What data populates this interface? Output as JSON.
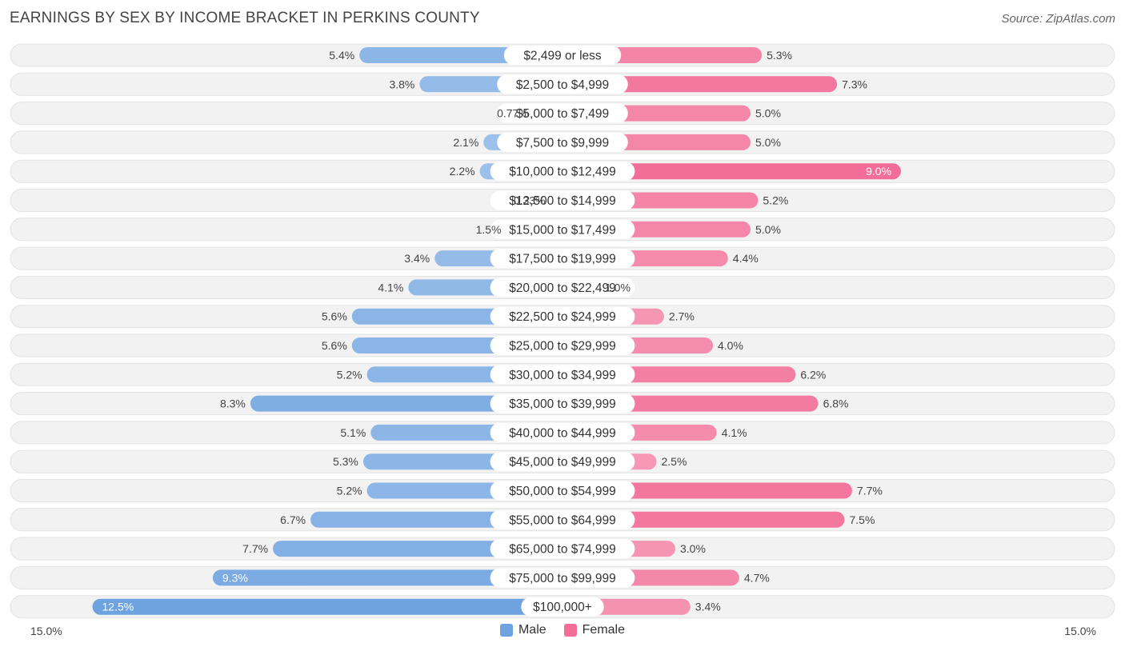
{
  "title": "EARNINGS BY SEX BY INCOME BRACKET IN PERKINS COUNTY",
  "source": "Source: ZipAtlas.com",
  "colors": {
    "male": "#6fa3df",
    "male_light": "#a9c9ee",
    "female": "#f26e98",
    "female_light": "#f8afc7",
    "row_bg": "#f2f2f2"
  },
  "chart_data": {
    "type": "bar",
    "orientation": "horizontal-diverging",
    "title": "EARNINGS BY SEX BY INCOME BRACKET IN PERKINS COUNTY",
    "categories": [
      "$2,499 or less",
      "$2,500 to $4,999",
      "$5,000 to $7,499",
      "$7,500 to $9,999",
      "$10,000 to $12,499",
      "$12,500 to $14,999",
      "$15,000 to $17,499",
      "$17,500 to $19,999",
      "$20,000 to $22,499",
      "$22,500 to $24,999",
      "$25,000 to $29,999",
      "$30,000 to $34,999",
      "$35,000 to $39,999",
      "$40,000 to $44,999",
      "$45,000 to $49,999",
      "$50,000 to $54,999",
      "$55,000 to $64,999",
      "$65,000 to $74,999",
      "$75,000 to $99,999",
      "$100,000+"
    ],
    "series": [
      {
        "name": "Male",
        "values": [
          5.4,
          3.8,
          0.77,
          2.1,
          2.2,
          0.33,
          1.5,
          3.4,
          4.1,
          5.6,
          5.6,
          5.2,
          8.3,
          5.1,
          5.3,
          5.2,
          6.7,
          7.7,
          9.3,
          12.5
        ],
        "labels": [
          "5.4%",
          "3.8%",
          "0.77%",
          "2.1%",
          "2.2%",
          "0.33%",
          "1.5%",
          "3.4%",
          "4.1%",
          "5.6%",
          "5.6%",
          "5.2%",
          "8.3%",
          "5.1%",
          "5.3%",
          "5.2%",
          "6.7%",
          "7.7%",
          "9.3%",
          "12.5%"
        ]
      },
      {
        "name": "Female",
        "values": [
          5.3,
          7.3,
          5.0,
          5.0,
          9.0,
          5.2,
          5.0,
          4.4,
          1.0,
          2.7,
          4.0,
          6.2,
          6.8,
          4.1,
          2.5,
          7.7,
          7.5,
          3.0,
          4.7,
          3.4
        ],
        "labels": [
          "5.3%",
          "7.3%",
          "5.0%",
          "5.0%",
          "9.0%",
          "5.2%",
          "5.0%",
          "4.4%",
          "1.0%",
          "2.7%",
          "4.0%",
          "6.2%",
          "6.8%",
          "4.1%",
          "2.5%",
          "7.7%",
          "7.5%",
          "3.0%",
          "4.7%",
          "3.4%"
        ]
      }
    ],
    "xlim": [
      -15.0,
      15.0
    ],
    "axis_min_label": "15.0%",
    "axis_max_label": "15.0%",
    "legend": [
      "Male",
      "Female"
    ],
    "legend_position": "bottom-center"
  }
}
